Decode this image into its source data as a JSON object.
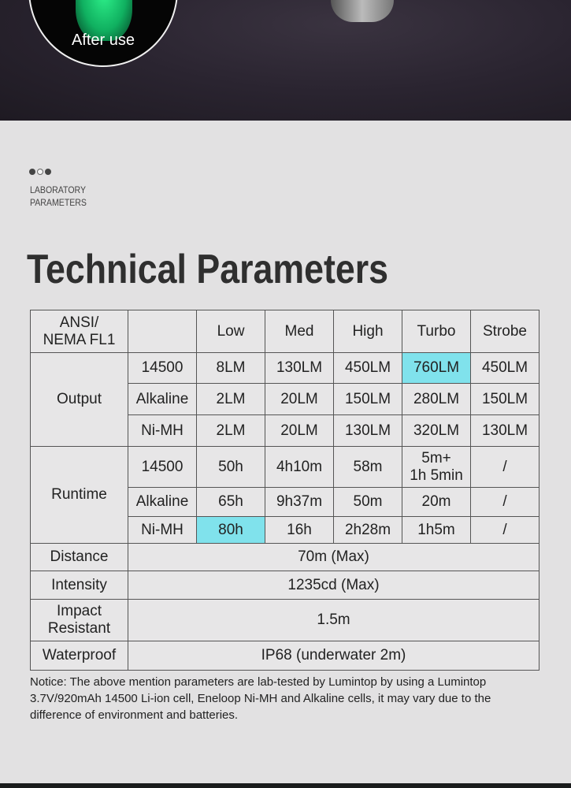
{
  "hero": {
    "caption": "After use"
  },
  "section": {
    "label_line1": "LABORATORY",
    "label_line2": "PARAMETERS",
    "title": "Technical Parameters"
  },
  "table": {
    "header": [
      "ANSI/\nNEMA FL1",
      "",
      "Low",
      "Med",
      "High",
      "Turbo",
      "Strobe"
    ],
    "header_line1": "ANSI/",
    "header_line2": "NEMA FL1",
    "modes": [
      "Low",
      "Med",
      "High",
      "Turbo",
      "Strobe"
    ],
    "output": {
      "label": "Output",
      "rows": [
        {
          "battery": "14500",
          "values": [
            "8LM",
            "130LM",
            "450LM",
            "760LM",
            "450LM"
          ]
        },
        {
          "battery": "Alkaline",
          "values": [
            "2LM",
            "20LM",
            "150LM",
            "280LM",
            "150LM"
          ]
        },
        {
          "battery": "Ni-MH",
          "values": [
            "2LM",
            "20LM",
            "130LM",
            "320LM",
            "130LM"
          ]
        }
      ]
    },
    "runtime": {
      "label": "Runtime",
      "rows": [
        {
          "battery": "14500",
          "values": [
            "50h",
            "4h10m",
            "58m",
            "5m+\n1h 5min",
            "/"
          ],
          "turbo_line1": "5m+",
          "turbo_line2": "1h 5min"
        },
        {
          "battery": "Alkaline",
          "values": [
            "65h",
            "9h37m",
            "50m",
            "20m",
            "/"
          ]
        },
        {
          "battery": "Ni-MH",
          "values": [
            "80h",
            "16h",
            "2h28m",
            "1h5m",
            "/"
          ]
        }
      ]
    },
    "distance": {
      "label": "Distance",
      "value": "70m (Max)"
    },
    "intensity": {
      "label": "Intensity",
      "value": "1235cd (Max)"
    },
    "impact": {
      "label_line1": "Impact",
      "label_line2": "Resistant",
      "value": "1.5m"
    },
    "waterproof": {
      "label": "Waterproof",
      "value": "IP68 (underwater 2m)"
    },
    "highlight_color": "#80e2ec"
  },
  "notice": "Notice: The above mention parameters are lab-tested by Lumintop by using a Lumintop 3.7V/920mAh 14500 Li-ion cell, Eneloop Ni-MH and Alkaline cells, it may vary due to the difference of environment and batteries."
}
